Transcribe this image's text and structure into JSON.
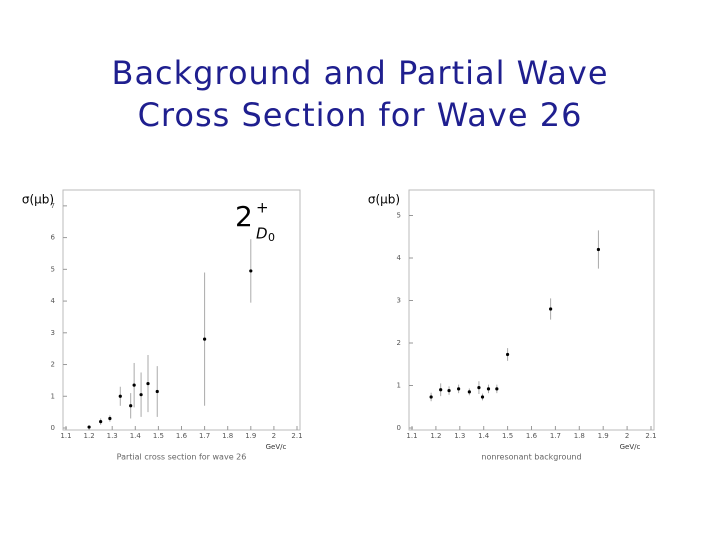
{
  "title": "Background and Partial Wave Cross Section for Wave 26",
  "chart_data": [
    {
      "type": "scatter",
      "ylabel": "σ(μb)",
      "xlabel": "Partial cross section for wave 26",
      "x_unit": "GeV/c",
      "annotation": {
        "base": "2",
        "sup": "+",
        "sub": "D",
        "sub_index": "0"
      },
      "x": [
        1.2,
        1.25,
        1.29,
        1.335,
        1.38,
        1.395,
        1.425,
        1.455,
        1.495,
        1.7,
        1.9
      ],
      "values": [
        0.03,
        0.2,
        0.3,
        1.0,
        0.7,
        1.35,
        1.05,
        1.4,
        1.15,
        2.8,
        4.95
      ],
      "errors": [
        0.05,
        0.1,
        0.1,
        0.3,
        0.4,
        0.7,
        0.7,
        0.9,
        0.8,
        2.1,
        1.0
      ],
      "color": "#000000",
      "error_color": "#aaaaaa",
      "xlim": [
        1.1,
        2.1
      ],
      "xticks": [
        1.1,
        1.2,
        1.3,
        1.4,
        1.5,
        1.6,
        1.7,
        1.8,
        1.9,
        2,
        2.1
      ],
      "ylim": [
        0,
        7.5
      ],
      "yticks": [
        0,
        1,
        2,
        3,
        4,
        5,
        6,
        7
      ]
    },
    {
      "type": "scatter",
      "ylabel": "σ(μb)",
      "xlabel": "nonresonant background",
      "x_unit": "GeV/c",
      "x": [
        1.18,
        1.22,
        1.255,
        1.295,
        1.34,
        1.38,
        1.395,
        1.42,
        1.455,
        1.5,
        1.68,
        1.88
      ],
      "values": [
        0.73,
        0.9,
        0.88,
        0.92,
        0.85,
        0.95,
        0.73,
        0.92,
        0.92,
        1.73,
        2.8,
        4.2
      ],
      "errors": [
        0.1,
        0.15,
        0.1,
        0.1,
        0.08,
        0.15,
        0.08,
        0.1,
        0.1,
        0.15,
        0.25,
        0.45
      ],
      "color": "#000000",
      "error_color": "#aaaaaa",
      "xlim": [
        1.1,
        2.1
      ],
      "xticks": [
        1.1,
        1.2,
        1.3,
        1.4,
        1.5,
        1.6,
        1.7,
        1.8,
        1.9,
        2,
        2.1
      ],
      "ylim": [
        0,
        5.6
      ],
      "yticks": [
        0,
        1,
        2,
        3,
        4,
        5
      ]
    }
  ]
}
